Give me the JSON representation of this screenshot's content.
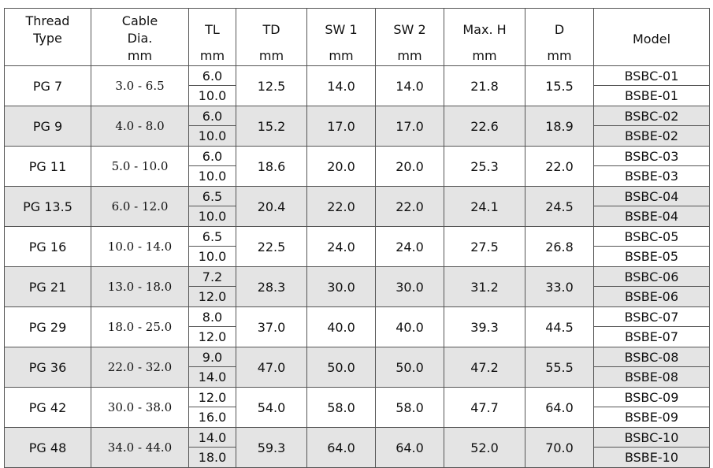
{
  "headers": {
    "thread": [
      "Thread",
      "Type"
    ],
    "cable": [
      "Cable",
      "Dia.",
      "mm"
    ],
    "tl": [
      "TL",
      "mm"
    ],
    "td": [
      "TD",
      "mm"
    ],
    "sw1": [
      "SW 1",
      "mm"
    ],
    "sw2": [
      "SW 2",
      "mm"
    ],
    "maxh": [
      "Max. H",
      "mm"
    ],
    "d": [
      "D",
      "mm"
    ],
    "model": "Model"
  },
  "rows": [
    {
      "thread": "PG 7",
      "cable": "3.0 - 6.5",
      "tl": [
        "6.0",
        "10.0"
      ],
      "td": "12.5",
      "sw1": "14.0",
      "sw2": "14.0",
      "maxh": "21.8",
      "d": "15.5",
      "model": [
        "BSBC-01",
        "BSBE-01"
      ]
    },
    {
      "thread": "PG 9",
      "cable": "4.0 - 8.0",
      "tl": [
        "6.0",
        "10.0"
      ],
      "td": "15.2",
      "sw1": "17.0",
      "sw2": "17.0",
      "maxh": "22.6",
      "d": "18.9",
      "model": [
        "BSBC-02",
        "BSBE-02"
      ]
    },
    {
      "thread": "PG 11",
      "cable": "5.0 - 10.0",
      "tl": [
        "6.0",
        "10.0"
      ],
      "td": "18.6",
      "sw1": "20.0",
      "sw2": "20.0",
      "maxh": "25.3",
      "d": "22.0",
      "model": [
        "BSBC-03",
        "BSBE-03"
      ]
    },
    {
      "thread": "PG 13.5",
      "cable": "6.0 - 12.0",
      "tl": [
        "6.5",
        "10.0"
      ],
      "td": "20.4",
      "sw1": "22.0",
      "sw2": "22.0",
      "maxh": "24.1",
      "d": "24.5",
      "model": [
        "BSBC-04",
        "BSBE-04"
      ]
    },
    {
      "thread": "PG 16",
      "cable": "10.0 - 14.0",
      "tl": [
        "6.5",
        "10.0"
      ],
      "td": "22.5",
      "sw1": "24.0",
      "sw2": "24.0",
      "maxh": "27.5",
      "d": "26.8",
      "model": [
        "BSBC-05",
        "BSBE-05"
      ]
    },
    {
      "thread": "PG 21",
      "cable": "13.0 - 18.0",
      "tl": [
        "7.2",
        "12.0"
      ],
      "td": "28.3",
      "sw1": "30.0",
      "sw2": "30.0",
      "maxh": "31.2",
      "d": "33.0",
      "model": [
        "BSBC-06",
        "BSBE-06"
      ]
    },
    {
      "thread": "PG 29",
      "cable": "18.0 - 25.0",
      "tl": [
        "8.0",
        "12.0"
      ],
      "td": "37.0",
      "sw1": "40.0",
      "sw2": "40.0",
      "maxh": "39.3",
      "d": "44.5",
      "model": [
        "BSBC-07",
        "BSBE-07"
      ]
    },
    {
      "thread": "PG 36",
      "cable": "22.0 - 32.0",
      "tl": [
        "9.0",
        "14.0"
      ],
      "td": "47.0",
      "sw1": "50.0",
      "sw2": "50.0",
      "maxh": "47.2",
      "d": "55.5",
      "model": [
        "BSBC-08",
        "BSBE-08"
      ]
    },
    {
      "thread": "PG 42",
      "cable": "30.0 - 38.0",
      "tl": [
        "12.0",
        "16.0"
      ],
      "td": "54.0",
      "sw1": "58.0",
      "sw2": "58.0",
      "maxh": "47.7",
      "d": "64.0",
      "model": [
        "BSBC-09",
        "BSBE-09"
      ]
    },
    {
      "thread": "PG 48",
      "cable": "34.0 - 44.0",
      "tl": [
        "14.0",
        "18.0"
      ],
      "td": "59.3",
      "sw1": "64.0",
      "sw2": "64.0",
      "maxh": "52.0",
      "d": "70.0",
      "model": [
        "BSBC-10",
        "BSBE-10"
      ]
    }
  ],
  "colors": {
    "row_alt": "#e4e4e4",
    "border": "#555555"
  }
}
